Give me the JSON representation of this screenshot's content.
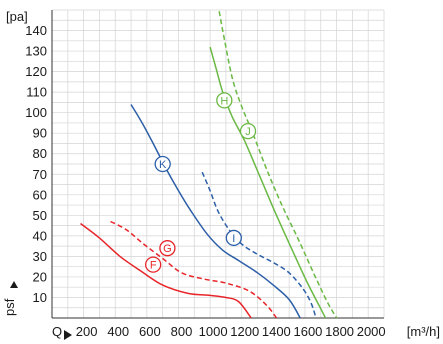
{
  "chart_data": {
    "type": "line",
    "y_unit": "[pa]",
    "x_unit": "[m³/h]",
    "y_axis_label": "psf",
    "x_axis_label": "Q",
    "xlim": [
      0,
      2100
    ],
    "ylim": [
      0,
      150
    ],
    "x_ticks": [
      200,
      400,
      600,
      800,
      1000,
      1200,
      1400,
      1600,
      1800,
      2000
    ],
    "y_ticks": [
      10,
      20,
      30,
      40,
      50,
      60,
      70,
      80,
      90,
      100,
      110,
      120,
      130,
      140
    ],
    "grid": true,
    "series": [
      {
        "name": "F",
        "color": "#e8262a",
        "dash": false,
        "marker": {
          "x": 640,
          "y": 26
        },
        "points": [
          [
            180,
            46
          ],
          [
            300,
            39
          ],
          [
            430,
            30
          ],
          [
            560,
            23
          ],
          [
            700,
            16
          ],
          [
            860,
            12
          ],
          [
            1000,
            11
          ],
          [
            1100,
            10
          ],
          [
            1180,
            8
          ],
          [
            1260,
            0
          ]
        ]
      },
      {
        "name": "G",
        "color": "#e8262a",
        "dash": true,
        "marker": {
          "x": 730,
          "y": 34
        },
        "points": [
          [
            370,
            47
          ],
          [
            470,
            43
          ],
          [
            580,
            36
          ],
          [
            700,
            29
          ],
          [
            820,
            22
          ],
          [
            960,
            19
          ],
          [
            1100,
            17
          ],
          [
            1250,
            13
          ],
          [
            1360,
            6
          ],
          [
            1420,
            0
          ]
        ]
      },
      {
        "name": "K",
        "color": "#2c5fa8",
        "dash": false,
        "marker": {
          "x": 700,
          "y": 75
        },
        "points": [
          [
            500,
            104
          ],
          [
            570,
            95
          ],
          [
            640,
            85
          ],
          [
            720,
            73
          ],
          [
            800,
            62
          ],
          [
            880,
            52
          ],
          [
            980,
            41
          ],
          [
            1080,
            33
          ],
          [
            1180,
            28
          ],
          [
            1300,
            22
          ],
          [
            1400,
            16
          ],
          [
            1500,
            9
          ],
          [
            1570,
            0
          ]
        ]
      },
      {
        "name": "I",
        "color": "#2c5fa8",
        "dash": true,
        "marker": {
          "x": 1150,
          "y": 39
        },
        "points": [
          [
            950,
            71
          ],
          [
            1000,
            62
          ],
          [
            1050,
            52
          ],
          [
            1120,
            43
          ],
          [
            1200,
            36
          ],
          [
            1300,
            31
          ],
          [
            1400,
            27
          ],
          [
            1500,
            22
          ],
          [
            1590,
            14
          ],
          [
            1640,
            7
          ],
          [
            1670,
            0
          ]
        ]
      },
      {
        "name": "H",
        "color": "#6ab944",
        "dash": false,
        "marker": {
          "x": 1090,
          "y": 106
        },
        "points": [
          [
            1000,
            132
          ],
          [
            1040,
            121
          ],
          [
            1080,
            110
          ],
          [
            1140,
            98
          ],
          [
            1220,
            86
          ],
          [
            1320,
            68
          ],
          [
            1420,
            50
          ],
          [
            1520,
            33
          ],
          [
            1610,
            18
          ],
          [
            1690,
            6
          ],
          [
            1730,
            0
          ]
        ]
      },
      {
        "name": "J",
        "color": "#6ab944",
        "dash": true,
        "marker": {
          "x": 1240,
          "y": 91
        },
        "points": [
          [
            1040,
            157
          ],
          [
            1080,
            140
          ],
          [
            1140,
            117
          ],
          [
            1200,
            103
          ],
          [
            1270,
            90
          ],
          [
            1360,
            72
          ],
          [
            1460,
            54
          ],
          [
            1560,
            38
          ],
          [
            1660,
            21
          ],
          [
            1740,
            8
          ],
          [
            1800,
            0
          ]
        ]
      }
    ]
  }
}
